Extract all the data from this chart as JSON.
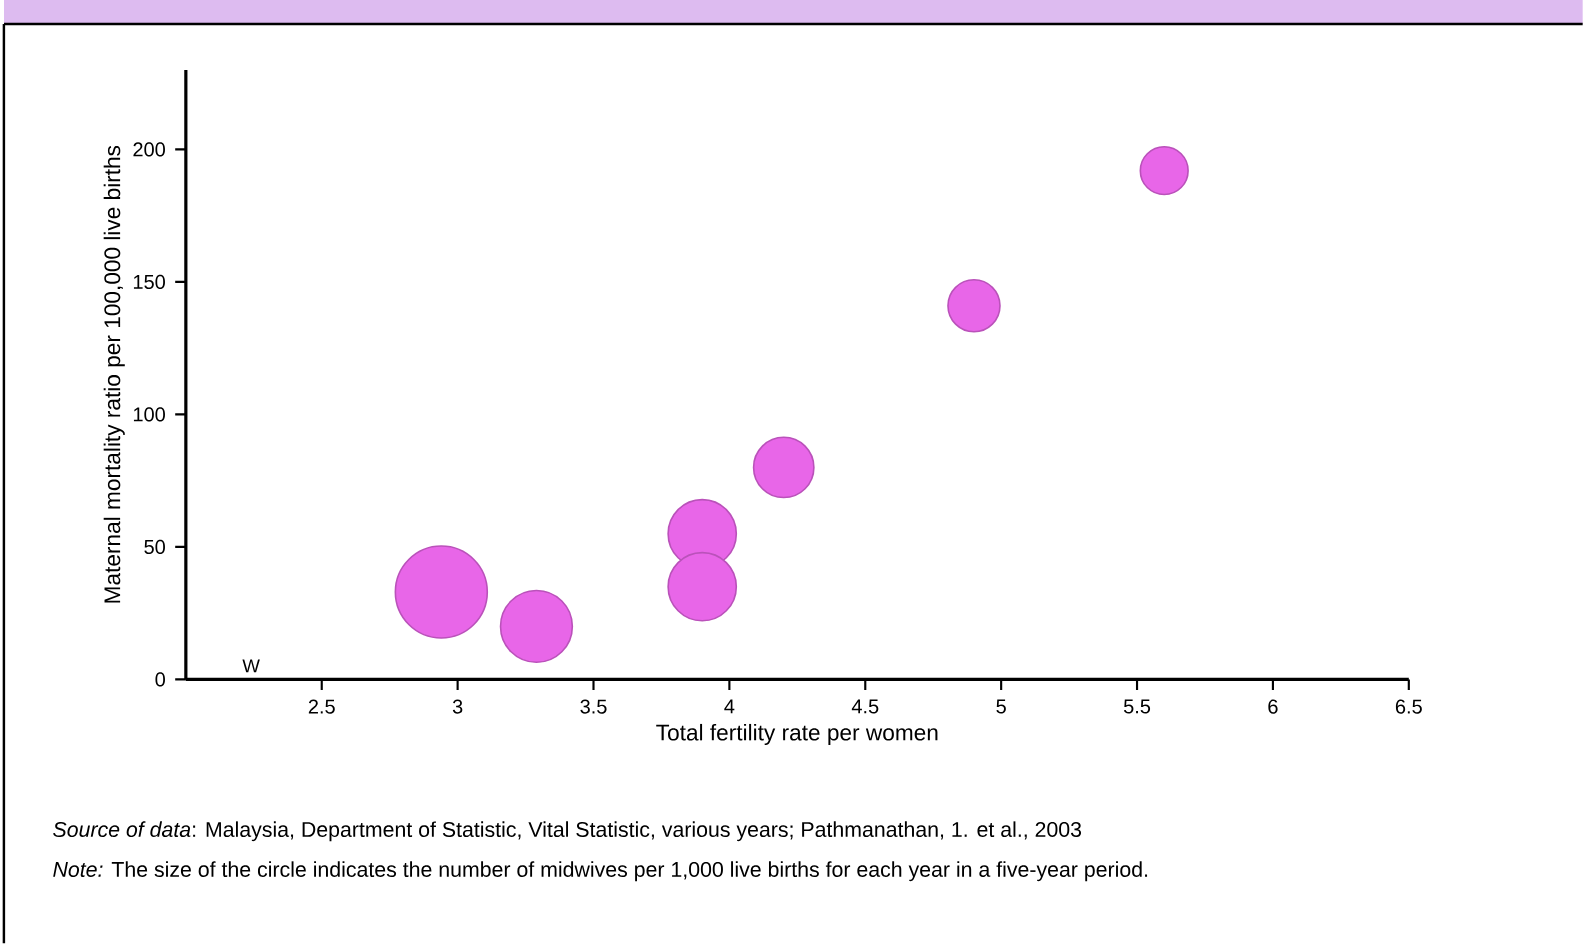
{
  "chart_data": {
    "type": "bubble",
    "xlabel": "Total fertility rate per women",
    "ylabel": "Maternal mortality ratio per 100,000 live births",
    "x": [
      2.94,
      3.29,
      3.9,
      3.9,
      4.2,
      4.9,
      5.6
    ],
    "values": [
      33,
      20,
      55,
      35,
      80,
      141,
      192
    ],
    "sizes": [
      1,
      0.61,
      0.55,
      0.55,
      0.43,
      0.32,
      0.27
    ],
    "color": "#e866e8",
    "xlim": [
      2,
      6.5
    ],
    "xticks": [
      2.5,
      3,
      3.5,
      4,
      4.5,
      5,
      5.5,
      6,
      6.5
    ],
    "ylim": [
      0,
      230
    ],
    "yticks": [
      0,
      50,
      100,
      150,
      200
    ],
    "annotations": [
      "W",
      "*Source of data*: Malaysia, Department of Statistic, Vital Statistic, various years; Pathmanathan, 1. et al., 2003",
      "*Note:* The size of the circle indicates the number of midwives per 1,000 live births for each year in a five-year period."
    ]
  }
}
